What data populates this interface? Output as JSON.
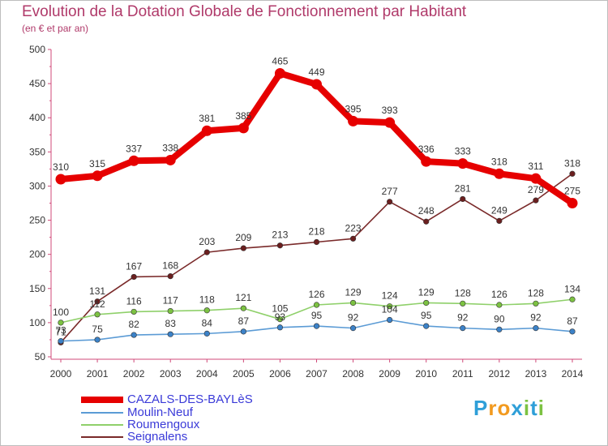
{
  "header": {
    "title": "Evolution de la Dotation Globale de Fonctionnement par Habitant",
    "subtitle": "(en € et par an)"
  },
  "logo": {
    "text": "Proxiti",
    "letters": [
      "P",
      "r",
      "o",
      "x",
      "i",
      "t",
      "i"
    ],
    "letter_colors": [
      "#2f9fd8",
      "#f29a1f",
      "#f29a1f",
      "#2f9fd8",
      "#7cc242",
      "#2f9fd8",
      "#7cc242"
    ]
  },
  "chart_data": {
    "type": "line",
    "x": [
      "2000",
      "2001",
      "2002",
      "2003",
      "2004",
      "2005",
      "2006",
      "2007",
      "2008",
      "2009",
      "2010",
      "2011",
      "2012",
      "2013",
      "2014"
    ],
    "ylim": [
      50,
      500
    ],
    "yticks": [
      50,
      100,
      150,
      200,
      250,
      300,
      350,
      400,
      450,
      500
    ],
    "grid": false,
    "legend_position": "bottom-left",
    "series": [
      {
        "name": "CAZALS-DES-BAYLèS",
        "color": "#e60000",
        "marker_color": "#e60000",
        "values": [
          310,
          315,
          337,
          338,
          381,
          385,
          465,
          449,
          395,
          393,
          336,
          333,
          318,
          311,
          275
        ]
      },
      {
        "name": "Moulin-Neuf",
        "color": "#5b9bd5",
        "marker_color": "#3c82c8",
        "values": [
          73,
          75,
          82,
          83,
          84,
          87,
          93,
          95,
          92,
          104,
          95,
          92,
          90,
          92,
          87
        ]
      },
      {
        "name": "Roumengoux",
        "color": "#8fd06a",
        "marker_color": "#7cc242",
        "values": [
          100,
          112,
          116,
          117,
          118,
          121,
          105,
          126,
          129,
          124,
          129,
          128,
          126,
          128,
          134
        ]
      },
      {
        "name": "Seignalens",
        "color": "#7a2a2a",
        "marker_color": "#6b1f1f",
        "values": [
          71,
          131,
          167,
          168,
          203,
          209,
          213,
          218,
          223,
          277,
          248,
          281,
          249,
          279,
          318
        ]
      }
    ]
  }
}
